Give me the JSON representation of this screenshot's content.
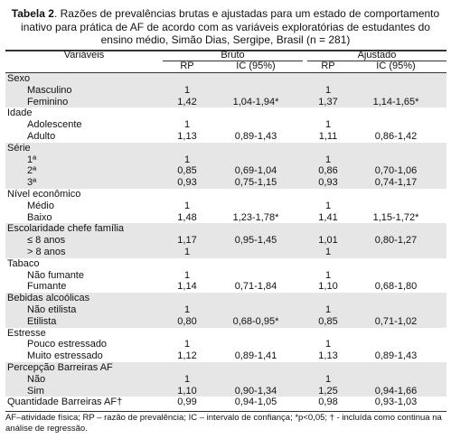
{
  "header": {
    "label": "Tabela 2",
    "title": ". Razões de prevalências brutas e ajustadas para um estado de comportamento inativo para prática de AF de acordo com as variáveis exploratórias de estudantes do ensino médio, Simão Dias, Sergipe, Brasil (n = 281)"
  },
  "table": {
    "columns": {
      "variable": "Variáveis",
      "groups": [
        "Bruto",
        "Ajustado"
      ],
      "sub": [
        "RP",
        "IC (95%)",
        "RP",
        "IC (95%)"
      ]
    },
    "groups": [
      {
        "label": "Sexo",
        "rows": [
          [
            "Masculino",
            "1",
            "",
            "1",
            ""
          ],
          [
            "Feminino",
            "1,42",
            "1,04-1,94*",
            "1,37",
            "1,14-1,65*"
          ]
        ]
      },
      {
        "label": "Idade",
        "rows": [
          [
            "Adolescente",
            "1",
            "",
            "1",
            ""
          ],
          [
            "Adulto",
            "1,13",
            "0,89-1,43",
            "1,11",
            "0,86-1,42"
          ]
        ]
      },
      {
        "label": "Série",
        "rows": [
          [
            "1ª",
            "1",
            "",
            "1",
            ""
          ],
          [
            "2ª",
            "0,85",
            "0,69-1,04",
            "0,86",
            "0,70-1,06"
          ],
          [
            "3ª",
            "0,93",
            "0,75-1,15",
            "0,93",
            "0,74-1,17"
          ]
        ]
      },
      {
        "label": "Nível econômico",
        "rows": [
          [
            "Médio",
            "1",
            "",
            "1",
            ""
          ],
          [
            "Baixo",
            "1,48",
            "1,23-1,78*",
            "1,41",
            "1,15-1,72*"
          ]
        ]
      },
      {
        "label": "Escolaridade chefe família",
        "rows": [
          [
            "≤ 8 anos",
            "1,17",
            "0,95-1,45",
            "1,01",
            "0,80-1,27"
          ],
          [
            "> 8 anos",
            "1",
            "",
            "1",
            ""
          ]
        ]
      },
      {
        "label": "Tabaco",
        "rows": [
          [
            "Não fumante",
            "1",
            "",
            "1",
            ""
          ],
          [
            "Fumante",
            "1,14",
            "0,71-1,84",
            "1,10",
            "0,68-1,80"
          ]
        ]
      },
      {
        "label": "Bebidas alcoólicas",
        "rows": [
          [
            "Não etilista",
            "1",
            "",
            "1",
            ""
          ],
          [
            "Etilista",
            "0,80",
            "0,68-0,95*",
            "0,85",
            "0,71-1,02"
          ]
        ]
      },
      {
        "label": "Estresse",
        "rows": [
          [
            "Pouco estressado",
            "1",
            "",
            "1",
            ""
          ],
          [
            "Muito estressado",
            "1,12",
            "0,89-1,41",
            "1,13",
            "0,89-1,43"
          ]
        ]
      },
      {
        "label": "Percepção Barreiras AF",
        "rows": [
          [
            "Não",
            "1",
            "",
            "1",
            ""
          ],
          [
            "Sim",
            "1,10",
            "0,90-1,34",
            "1,25",
            "0,94-1,66"
          ]
        ]
      },
      {
        "label": "Quantidade Barreiras AF†",
        "values": [
          "0,99",
          "0,94-1,05",
          "0,98",
          "0,93-1,03"
        ],
        "rows": []
      }
    ]
  },
  "footnote": "AF–atividade física;  RP – razão de prevalência; IC  – intervalo de confiança; *p<0,05; †  - incluída como continua na análise de regressão."
}
